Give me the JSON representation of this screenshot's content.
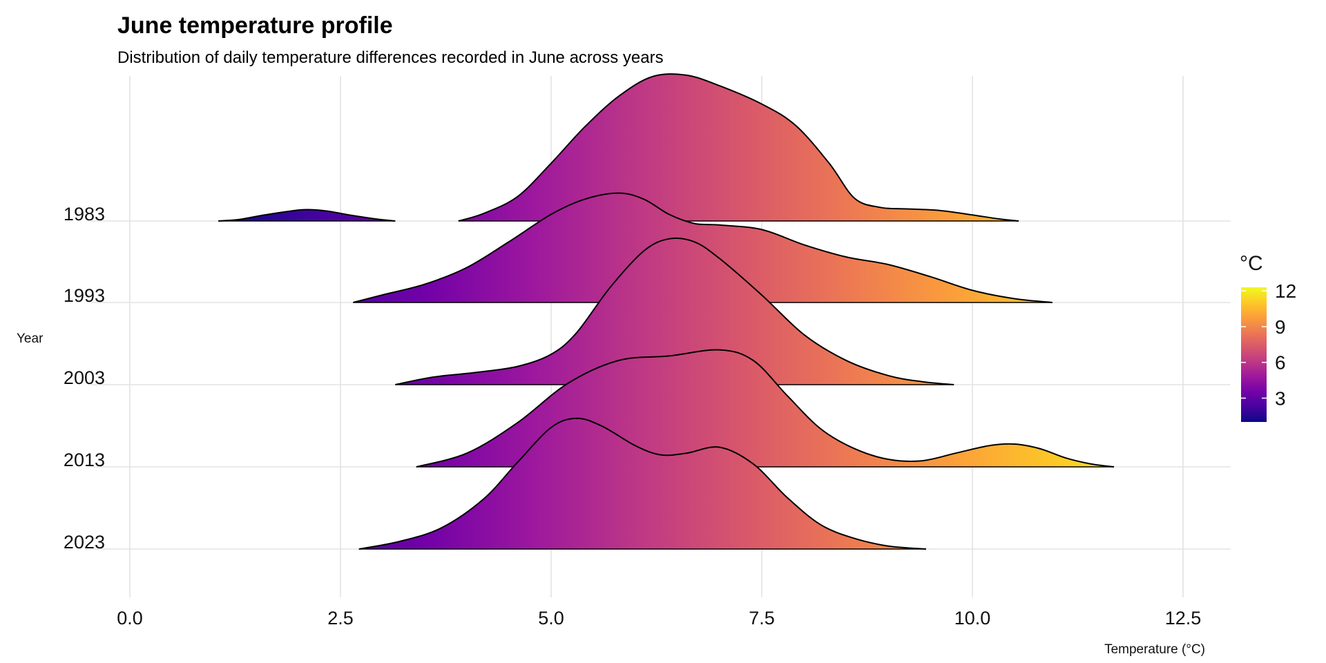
{
  "chart_data": {
    "type": "ridgeline",
    "title": "June temperature profile",
    "subtitle": "Distribution of daily temperature differences recorded in June across years",
    "xlabel": "Temperature (°C)",
    "ylabel": "Year",
    "xlim": [
      -0.2,
      12.8
    ],
    "x_ticks": [
      0.0,
      2.5,
      5.0,
      7.5,
      10.0,
      12.5
    ],
    "x_tick_labels": [
      "0.0",
      "2.5",
      "5.0",
      "7.5",
      "10.0",
      "12.5"
    ],
    "categories": [
      "1983",
      "1993",
      "2003",
      "2013",
      "2023"
    ],
    "grid": true,
    "fill_colormap": "plasma",
    "legend": {
      "title": "°C",
      "position": "right",
      "range": [
        1,
        12.3
      ],
      "ticks": [
        3,
        6,
        9,
        12
      ],
      "tick_labels": [
        "3",
        "6",
        "9",
        "12"
      ]
    },
    "series": [
      {
        "name": "1983",
        "segments": [
          {
            "x": [
              1.05,
              1.3,
              1.6,
              1.9,
              2.1,
              2.35,
              2.6,
              2.9,
              3.15
            ],
            "density": [
              0.0,
              0.01,
              0.04,
              0.065,
              0.075,
              0.065,
              0.04,
              0.015,
              0.0
            ]
          },
          {
            "x": [
              3.9,
              4.2,
              4.6,
              5.0,
              5.4,
              5.8,
              6.2,
              6.6,
              7.0,
              7.5,
              7.9,
              8.3,
              8.6,
              8.9,
              9.2,
              9.6,
              10.0,
              10.3,
              10.55
            ],
            "density": [
              0.0,
              0.05,
              0.16,
              0.38,
              0.62,
              0.82,
              0.95,
              0.96,
              0.89,
              0.77,
              0.63,
              0.38,
              0.15,
              0.09,
              0.08,
              0.07,
              0.04,
              0.015,
              0.0
            ]
          }
        ]
      },
      {
        "name": "1993",
        "segments": [
          {
            "x": [
              2.65,
              3.0,
              3.5,
              4.0,
              4.5,
              5.0,
              5.4,
              5.8,
              6.1,
              6.4,
              6.7,
              7.0,
              7.5,
              8.0,
              8.5,
              9.0,
              9.5,
              10.0,
              10.5,
              10.95
            ],
            "density": [
              0.0,
              0.05,
              0.12,
              0.23,
              0.4,
              0.58,
              0.68,
              0.72,
              0.68,
              0.58,
              0.52,
              0.51,
              0.48,
              0.38,
              0.3,
              0.25,
              0.17,
              0.08,
              0.025,
              0.0
            ]
          }
        ]
      },
      {
        "name": "2003",
        "segments": [
          {
            "x": [
              3.15,
              3.6,
              4.1,
              4.6,
              5.0,
              5.3,
              5.7,
              6.1,
              6.4,
              6.7,
              7.0,
              7.5,
              8.0,
              8.5,
              9.0,
              9.4,
              9.78
            ],
            "density": [
              0.0,
              0.05,
              0.08,
              0.12,
              0.2,
              0.34,
              0.64,
              0.88,
              0.96,
              0.94,
              0.83,
              0.59,
              0.33,
              0.16,
              0.06,
              0.02,
              0.0
            ]
          }
        ]
      },
      {
        "name": "2013",
        "segments": [
          {
            "x": [
              3.4,
              4.0,
              4.6,
              5.2,
              5.8,
              6.4,
              7.0,
              7.4,
              7.8,
              8.2,
              8.6,
              9.0,
              9.4,
              9.8,
              10.2,
              10.5,
              10.8,
              11.1,
              11.4,
              11.68
            ],
            "density": [
              0.0,
              0.09,
              0.29,
              0.55,
              0.7,
              0.73,
              0.77,
              0.7,
              0.47,
              0.25,
              0.12,
              0.05,
              0.04,
              0.09,
              0.14,
              0.15,
              0.12,
              0.06,
              0.02,
              0.0
            ]
          }
        ]
      },
      {
        "name": "2023",
        "segments": [
          {
            "x": [
              2.72,
              3.2,
              3.7,
              4.2,
              4.6,
              5.0,
              5.3,
              5.6,
              6.0,
              6.3,
              6.6,
              7.0,
              7.4,
              7.8,
              8.2,
              8.6,
              9.0,
              9.45
            ],
            "density": [
              0.0,
              0.05,
              0.14,
              0.33,
              0.57,
              0.8,
              0.86,
              0.81,
              0.68,
              0.62,
              0.63,
              0.67,
              0.56,
              0.34,
              0.16,
              0.07,
              0.02,
              0.0
            ]
          }
        ]
      }
    ]
  }
}
